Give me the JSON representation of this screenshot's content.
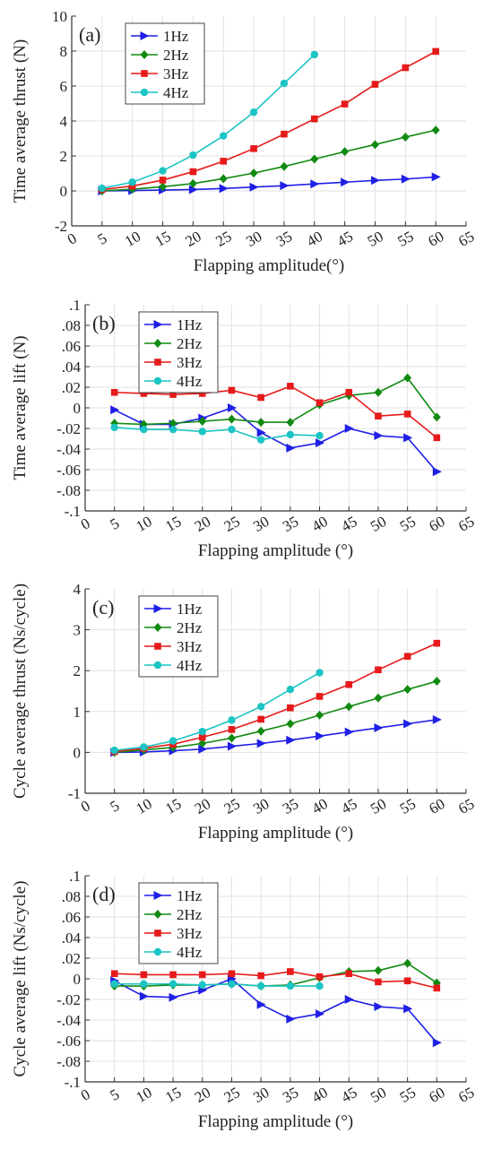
{
  "colors": {
    "1Hz": "#1f1fe6",
    "2Hz": "#118a11",
    "3Hz": "#e61a1a",
    "4Hz": "#1cc4c4",
    "axis": "#333333",
    "grid": "#e2e2e2"
  },
  "chart_data": [
    {
      "type": "line",
      "panel_label": "(a)",
      "xlabel": "Flapping amplitude(°)",
      "ylabel": "Time average thrust (N)",
      "xlim": [
        0,
        65
      ],
      "ylim": [
        -2,
        10
      ],
      "xticks": [
        0,
        5,
        10,
        15,
        20,
        25,
        30,
        35,
        40,
        45,
        50,
        55,
        60,
        65
      ],
      "yticks": [
        -2,
        0,
        2,
        4,
        6,
        8,
        10
      ],
      "grid": true,
      "legend_position": "top-left",
      "series": [
        {
          "name": "1Hz",
          "marker": "triangle-right",
          "x": [
            5,
            10,
            15,
            20,
            25,
            30,
            35,
            40,
            45,
            50,
            55,
            60
          ],
          "y": [
            0.0,
            0.02,
            0.05,
            0.08,
            0.14,
            0.22,
            0.3,
            0.4,
            0.5,
            0.6,
            0.68,
            0.8
          ]
        },
        {
          "name": "2Hz",
          "marker": "diamond",
          "x": [
            5,
            10,
            15,
            20,
            25,
            30,
            35,
            40,
            45,
            50,
            55,
            60
          ],
          "y": [
            0.0,
            0.1,
            0.24,
            0.42,
            0.7,
            1.02,
            1.4,
            1.82,
            2.25,
            2.65,
            3.08,
            3.48
          ]
        },
        {
          "name": "3Hz",
          "marker": "square",
          "x": [
            5,
            10,
            15,
            20,
            25,
            30,
            35,
            40,
            45,
            50,
            55,
            60
          ],
          "y": [
            0.08,
            0.28,
            0.62,
            1.1,
            1.7,
            2.42,
            3.25,
            4.12,
            4.97,
            6.1,
            7.05,
            7.98
          ]
        },
        {
          "name": "4Hz",
          "marker": "circle",
          "x": [
            5,
            10,
            15,
            20,
            25,
            30,
            35,
            40
          ],
          "y": [
            0.15,
            0.5,
            1.15,
            2.05,
            3.15,
            4.5,
            6.15,
            7.8
          ]
        }
      ]
    },
    {
      "type": "line",
      "panel_label": "(b)",
      "xlabel": "Flapping amplitude (°)",
      "ylabel": "Time average lift (N)",
      "xlim": [
        0,
        65
      ],
      "ylim": [
        -0.1,
        0.1
      ],
      "xticks": [
        0,
        5,
        10,
        15,
        20,
        25,
        30,
        35,
        40,
        45,
        50,
        55,
        60,
        65
      ],
      "yticks": [
        -0.1,
        -0.08,
        -0.06,
        -0.04,
        -0.02,
        0,
        0.02,
        0.04,
        0.06,
        0.08,
        0.1
      ],
      "grid": true,
      "legend_position": "top-left",
      "series": [
        {
          "name": "1Hz",
          "marker": "triangle-right",
          "x": [
            5,
            10,
            15,
            20,
            25,
            30,
            35,
            40,
            45,
            50,
            55,
            60
          ],
          "y": [
            -0.002,
            -0.016,
            -0.016,
            -0.01,
            0.0,
            -0.024,
            -0.039,
            -0.034,
            -0.02,
            -0.027,
            -0.029,
            -0.062
          ]
        },
        {
          "name": "2Hz",
          "marker": "diamond",
          "x": [
            5,
            10,
            15,
            20,
            25,
            30,
            35,
            40,
            45,
            50,
            55,
            60
          ],
          "y": [
            -0.015,
            -0.016,
            -0.015,
            -0.013,
            -0.011,
            -0.014,
            -0.014,
            0.003,
            0.012,
            0.015,
            0.029,
            -0.009
          ]
        },
        {
          "name": "3Hz",
          "marker": "square",
          "x": [
            5,
            10,
            15,
            20,
            25,
            30,
            35,
            40,
            45,
            50,
            55,
            60
          ],
          "y": [
            0.015,
            0.014,
            0.013,
            0.014,
            0.017,
            0.01,
            0.021,
            0.005,
            0.015,
            -0.008,
            -0.006,
            -0.029
          ]
        },
        {
          "name": "4Hz",
          "marker": "circle",
          "x": [
            5,
            10,
            15,
            20,
            25,
            30,
            35,
            40
          ],
          "y": [
            -0.019,
            -0.021,
            -0.021,
            -0.023,
            -0.021,
            -0.031,
            -0.026,
            -0.027
          ]
        }
      ]
    },
    {
      "type": "line",
      "panel_label": "(c)",
      "xlabel": "Flapping amplitude (°)",
      "ylabel": "Cycle average thrust (Ns/cycle)",
      "xlim": [
        0,
        65
      ],
      "ylim": [
        -1,
        4
      ],
      "xticks": [
        0,
        5,
        10,
        15,
        20,
        25,
        30,
        35,
        40,
        45,
        50,
        55,
        60,
        65
      ],
      "yticks": [
        -1,
        0,
        1,
        2,
        3,
        4
      ],
      "grid": true,
      "legend_position": "top-left",
      "series": [
        {
          "name": "1Hz",
          "marker": "triangle-right",
          "x": [
            5,
            10,
            15,
            20,
            25,
            30,
            35,
            40,
            45,
            50,
            55,
            60
          ],
          "y": [
            0.0,
            0.01,
            0.04,
            0.08,
            0.15,
            0.22,
            0.3,
            0.4,
            0.5,
            0.6,
            0.7,
            0.8
          ]
        },
        {
          "name": "2Hz",
          "marker": "diamond",
          "x": [
            5,
            10,
            15,
            20,
            25,
            30,
            35,
            40,
            45,
            50,
            55,
            60
          ],
          "y": [
            0.0,
            0.06,
            0.12,
            0.22,
            0.35,
            0.52,
            0.7,
            0.91,
            1.12,
            1.33,
            1.54,
            1.74
          ]
        },
        {
          "name": "3Hz",
          "marker": "square",
          "x": [
            5,
            10,
            15,
            20,
            25,
            30,
            35,
            40,
            45,
            50,
            55,
            60
          ],
          "y": [
            0.02,
            0.1,
            0.2,
            0.37,
            0.56,
            0.81,
            1.09,
            1.37,
            1.66,
            2.02,
            2.35,
            2.67
          ]
        },
        {
          "name": "4Hz",
          "marker": "circle",
          "x": [
            5,
            10,
            15,
            20,
            25,
            30,
            35,
            40
          ],
          "y": [
            0.05,
            0.13,
            0.28,
            0.51,
            0.79,
            1.12,
            1.54,
            1.95
          ]
        }
      ]
    },
    {
      "type": "line",
      "panel_label": "(d)",
      "xlabel": "Flapping amplitude (°)",
      "ylabel": "Cycle average lift (Ns/cycle)",
      "xlim": [
        0,
        65
      ],
      "ylim": [
        -0.1,
        0.1
      ],
      "xticks": [
        0,
        5,
        10,
        15,
        20,
        25,
        30,
        35,
        40,
        45,
        50,
        55,
        60,
        65
      ],
      "yticks": [
        -0.1,
        -0.08,
        -0.06,
        -0.04,
        -0.02,
        0,
        0.02,
        0.04,
        0.06,
        0.08,
        0.1
      ],
      "grid": true,
      "legend_position": "top-left",
      "series": [
        {
          "name": "1Hz",
          "marker": "triangle-right",
          "x": [
            5,
            10,
            15,
            20,
            25,
            30,
            35,
            40,
            45,
            50,
            55,
            60
          ],
          "y": [
            -0.002,
            -0.017,
            -0.018,
            -0.011,
            0.0,
            -0.025,
            -0.039,
            -0.034,
            -0.02,
            -0.027,
            -0.029,
            -0.062
          ]
        },
        {
          "name": "2Hz",
          "marker": "diamond",
          "x": [
            5,
            10,
            15,
            20,
            25,
            30,
            35,
            40,
            45,
            50,
            55,
            60
          ],
          "y": [
            -0.007,
            -0.007,
            -0.006,
            -0.006,
            -0.005,
            -0.007,
            -0.006,
            0.001,
            0.007,
            0.008,
            0.015,
            -0.004
          ]
        },
        {
          "name": "3Hz",
          "marker": "square",
          "x": [
            5,
            10,
            15,
            20,
            25,
            30,
            35,
            40,
            45,
            50,
            55,
            60
          ],
          "y": [
            0.005,
            0.004,
            0.004,
            0.004,
            0.005,
            0.003,
            0.007,
            0.002,
            0.005,
            -0.003,
            -0.002,
            -0.009
          ]
        },
        {
          "name": "4Hz",
          "marker": "circle",
          "x": [
            5,
            10,
            15,
            20,
            25,
            30,
            35,
            40
          ],
          "y": [
            -0.005,
            -0.005,
            -0.005,
            -0.006,
            -0.005,
            -0.007,
            -0.007,
            -0.007
          ]
        }
      ]
    }
  ]
}
